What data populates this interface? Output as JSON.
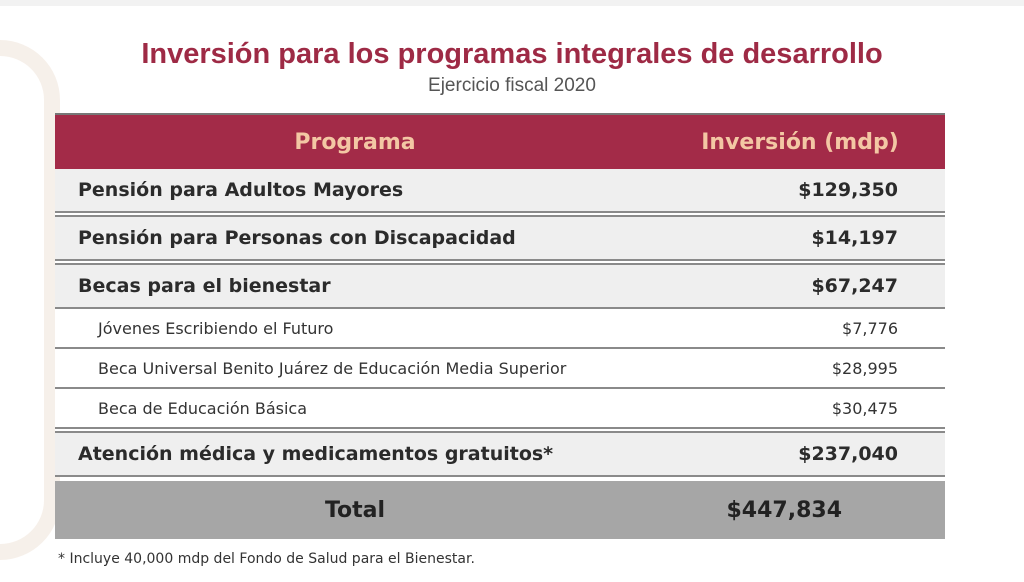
{
  "title": "Inversión para los programas integrales de desarrollo",
  "subtitle": "Ejercicio fiscal 2020",
  "table": {
    "headers": [
      "Programa",
      "Inversión (mdp)"
    ],
    "rows": [
      {
        "program": "Pensión para Adultos Mayores",
        "amount": "$129,350"
      },
      {
        "program": "Pensión para Personas con Discapacidad",
        "amount": "$14,197"
      },
      {
        "program": "Becas para el bienestar",
        "amount": "$67,247"
      },
      {
        "program": "Jóvenes Escribiendo el Futuro",
        "amount": "$7,776"
      },
      {
        "program": "Beca Universal Benito Juárez de Educación Media Superior",
        "amount": "$28,995"
      },
      {
        "program": "Beca de Educación Básica",
        "amount": "$30,475"
      },
      {
        "program": "Atención médica y medicamentos gratuitos*",
        "amount": "$237,040"
      }
    ],
    "total": {
      "label": "Total",
      "amount": "$447,834"
    }
  },
  "footnote": "* Incluye 40,000 mdp del Fondo de Salud para el Bienestar."
}
